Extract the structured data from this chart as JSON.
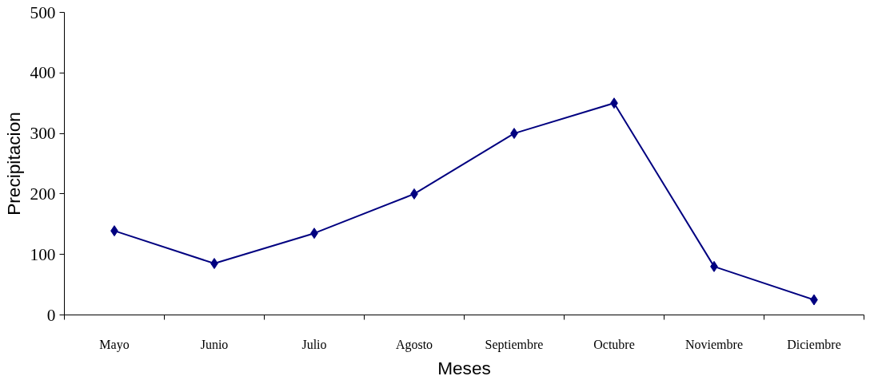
{
  "chart_data": {
    "type": "line",
    "xlabel": "Meses",
    "ylabel": "Precipitacion",
    "categories": [
      "Mayo",
      "Junio",
      "Julio",
      "Agosto",
      "Septiembre",
      "Octubre",
      "Noviembre",
      "Diciembre"
    ],
    "series": [
      {
        "color": "#000080",
        "values": [
          139,
          85,
          135,
          200,
          300,
          350,
          80,
          25
        ]
      }
    ],
    "ylim": [
      0,
      500
    ],
    "yticks": [
      0,
      100,
      200,
      300,
      400,
      500
    ],
    "grid": false,
    "marker": "diamond",
    "line_style": "solid"
  }
}
